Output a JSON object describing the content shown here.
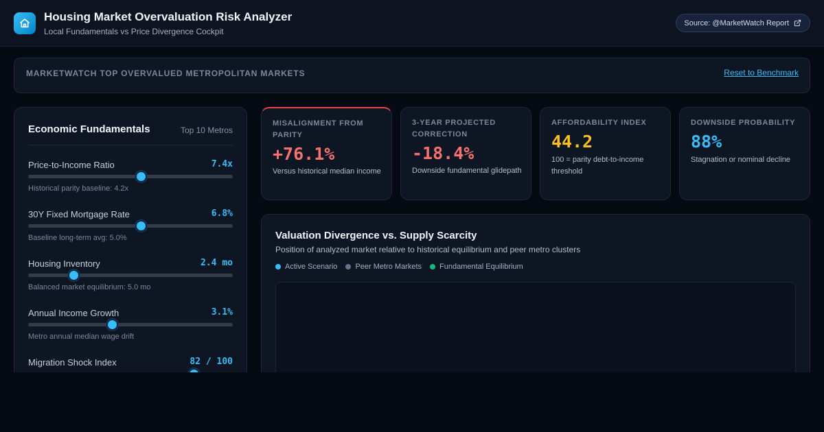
{
  "header": {
    "title": "Housing Market Overvaluation Risk Analyzer",
    "subtitle": "Local Fundamentals vs Price Divergence Cockpit",
    "source": "Source: @MarketWatch Report",
    "icons": {
      "logo": "home-icon",
      "source": "external-link-icon"
    }
  },
  "banner": {
    "title": "MARKETWATCH TOP OVERVALUED METROPOLITAN MARKETS",
    "reset_label": "Reset to Benchmark"
  },
  "fundamentals": {
    "title": "Economic Fundamentals",
    "tag": "Top 10 Metros",
    "sliders": [
      {
        "label": "Price-to-Income Ratio",
        "value": "7.4x",
        "hint": "Historical parity baseline: 4.2x",
        "fraction": 0.55
      },
      {
        "label": "30Y Fixed Mortgage Rate",
        "value": "6.8%",
        "hint": "Baseline long-term avg: 5.0%",
        "fraction": 0.55
      },
      {
        "label": "Housing Inventory",
        "value": "2.4 mo",
        "hint": "Balanced market equilibrium: 5.0 mo",
        "fraction": 0.22
      },
      {
        "label": "Annual Income Growth",
        "value": "3.1%",
        "hint": "Metro annual median wage drift",
        "fraction": 0.41
      },
      {
        "label": "Migration Shock Index",
        "value": "82 / 100",
        "hint": "",
        "fraction": 0.81
      }
    ]
  },
  "metrics": [
    {
      "label": "MISALIGNMENT FROM PARITY",
      "value": "+76.1%",
      "desc": "Versus historical median income",
      "color": "#f87171"
    },
    {
      "label": "3-YEAR PROJECTED CORRECTION",
      "value": "-18.4%",
      "desc": "Downside fundamental glidepath",
      "color": "#f87171"
    },
    {
      "label": "AFFORDABILITY INDEX",
      "value": "44.2",
      "desc": "100 = parity debt-to-income threshold",
      "color": "#fbbf24"
    },
    {
      "label": "DOWNSIDE PROBABILITY",
      "value": "88%",
      "desc": "Stagnation or nominal decline",
      "color": "#38bdf8"
    }
  ],
  "chart": {
    "title": "Valuation Divergence vs. Supply Scarcity",
    "subtitle": "Position of analyzed market relative to historical equilibrium and peer metro clusters",
    "legend": [
      {
        "label": "Active Scenario",
        "color": "#38bdf8"
      },
      {
        "label": "Peer Metro Markets",
        "color": "#64748b"
      },
      {
        "label": "Fundamental Equilibrium",
        "color": "#10b981"
      }
    ]
  }
}
